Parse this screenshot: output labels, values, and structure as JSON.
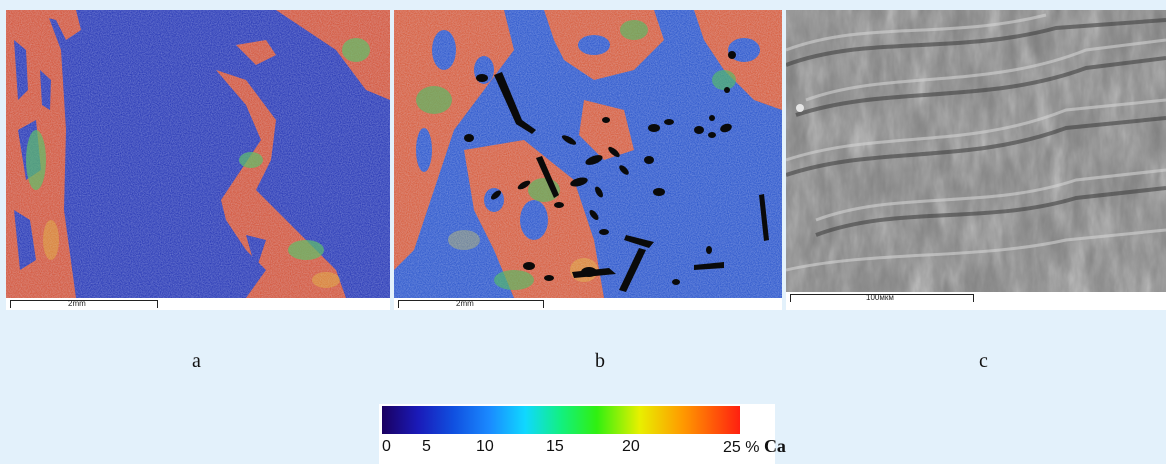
{
  "panels": [
    {
      "id": "a",
      "label": "a",
      "scale_text": "2mm",
      "image": "edx-ca-map-a"
    },
    {
      "id": "b",
      "label": "b",
      "scale_text": "2mm",
      "image": "edx-ca-map-b"
    },
    {
      "id": "c",
      "label": "c",
      "scale_text": "100мкм",
      "image": "sem-fracture-surface"
    }
  ],
  "colorbar": {
    "ticks": [
      "0",
      "5",
      "10",
      "15",
      "20"
    ],
    "last_tick": "25",
    "unit": "%",
    "element": "Ca"
  },
  "colors": {
    "background": "#e3f1fb",
    "map_blue": "#1a2bb0",
    "map_red": "#d84a2a",
    "map_green": "#49b860",
    "sem_gray": "#8a8a8a"
  }
}
